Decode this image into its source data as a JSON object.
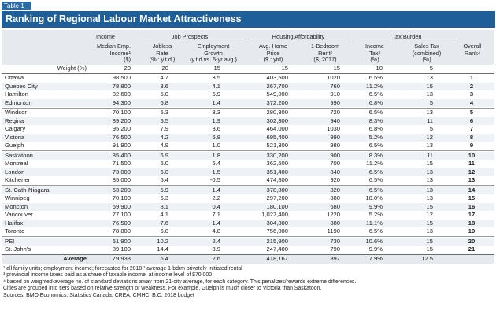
{
  "tag": "Table 1",
  "title": "Ranking of Regional Labour Market Attractiveness",
  "groups": {
    "income": "Income",
    "jobs": "Job Prospects",
    "housing": "Housing Affordability",
    "tax": "Tax Burden"
  },
  "headers": {
    "med_emp": [
      "Median Emp.",
      "Income¹",
      "($)"
    ],
    "jobless": [
      "Jobless",
      "Rate",
      "(% : y.t.d.)"
    ],
    "emp_growth": [
      "Employment",
      "Growth",
      "(y.t.d vs. 5-yr avg.)"
    ],
    "home_price": [
      "Avg. Home",
      "Price",
      "($ : ytd)"
    ],
    "rent": [
      "1-Bedroom",
      "Rent²",
      "($, 2017)"
    ],
    "income_tax": [
      "Income",
      "Tax³",
      "(%)"
    ],
    "sales_tax": [
      "Sales Tax",
      "(combined)",
      "(%)"
    ],
    "overall": [
      "Overall",
      "Rank⁴"
    ]
  },
  "weights": {
    "label": "Weight (%)",
    "values": [
      "20",
      "20",
      "15",
      "15",
      "15",
      "10",
      "5"
    ]
  },
  "rows": [
    {
      "city": "Ottawa",
      "med": "98,500",
      "jobless": "4.7",
      "growth": "3.5",
      "price": "403,500",
      "rent": "1020",
      "itax": "6.5%",
      "stax": "13",
      "rank": "1"
    },
    {
      "city": "Quebec City",
      "med": "78,800",
      "jobless": "3.6",
      "growth": "4.1",
      "price": "267,700",
      "rent": "760",
      "itax": "11.2%",
      "stax": "15",
      "rank": "2"
    },
    {
      "city": "Hamilton",
      "med": "82,600",
      "jobless": "5.0",
      "growth": "5.9",
      "price": "549,000",
      "rent": "910",
      "itax": "6.5%",
      "stax": "13",
      "rank": "3"
    },
    {
      "city": "Edmonton",
      "med": "94,300",
      "jobless": "6.8",
      "growth": "1.4",
      "price": "372,200",
      "rent": "990",
      "itax": "6.8%",
      "stax": "5",
      "rank": "4"
    },
    {
      "city": "Windsor",
      "med": "70,100",
      "jobless": "5.3",
      "growth": "3.3",
      "price": "280,300",
      "rent": "720",
      "itax": "6.5%",
      "stax": "13",
      "rank": "5"
    },
    {
      "city": "Regina",
      "med": "89,200",
      "jobless": "5.5",
      "growth": "1.9",
      "price": "302,300",
      "rent": "940",
      "itax": "8.3%",
      "stax": "11",
      "rank": "6"
    },
    {
      "city": "Calgary",
      "med": "95,200",
      "jobless": "7.9",
      "growth": "3.6",
      "price": "464,000",
      "rent": "1030",
      "itax": "6.8%",
      "stax": "5",
      "rank": "7"
    },
    {
      "city": "Victoria",
      "med": "76,500",
      "jobless": "4.2",
      "growth": "6.8",
      "price": "695,400",
      "rent": "990",
      "itax": "5.2%",
      "stax": "12",
      "rank": "8"
    },
    {
      "city": "Guelph",
      "med": "91,900",
      "jobless": "4.9",
      "growth": "1.0",
      "price": "521,300",
      "rent": "980",
      "itax": "6.5%",
      "stax": "13",
      "rank": "9"
    },
    {
      "city": "Saskatoon",
      "med": "85,400",
      "jobless": "6.9",
      "growth": "1.8",
      "price": "330,200",
      "rent": "900",
      "itax": "8.3%",
      "stax": "11",
      "rank": "10"
    },
    {
      "city": "Montreal",
      "med": "71,500",
      "jobless": "6.0",
      "growth": "5.4",
      "price": "362,600",
      "rent": "700",
      "itax": "11.2%",
      "stax": "15",
      "rank": "11"
    },
    {
      "city": "London",
      "med": "73,000",
      "jobless": "6.0",
      "growth": "1.5",
      "price": "351,400",
      "rent": "840",
      "itax": "6.5%",
      "stax": "13",
      "rank": "12"
    },
    {
      "city": "Kitchener",
      "med": "85,000",
      "jobless": "5.4",
      "growth": "-0.5",
      "price": "474,800",
      "rent": "920",
      "itax": "6.5%",
      "stax": "13",
      "rank": "13"
    },
    {
      "city": "St. Cath-Niagara",
      "med": "63,200",
      "jobless": "5.9",
      "growth": "1.4",
      "price": "378,800",
      "rent": "820",
      "itax": "6.5%",
      "stax": "13",
      "rank": "14"
    },
    {
      "city": "Winnipeg",
      "med": "70,100",
      "jobless": "6.3",
      "growth": "2.2",
      "price": "297,200",
      "rent": "880",
      "itax": "10.0%",
      "stax": "13",
      "rank": "15"
    },
    {
      "city": "Moncton",
      "med": "69,900",
      "jobless": "8.1",
      "growth": "0.4",
      "price": "180,100",
      "rent": "680",
      "itax": "9.9%",
      "stax": "15",
      "rank": "16"
    },
    {
      "city": "Vancouver",
      "med": "77,100",
      "jobless": "4.1",
      "growth": "7.1",
      "price": "1,027,400",
      "rent": "1220",
      "itax": "5.2%",
      "stax": "12",
      "rank": "17"
    },
    {
      "city": "Halifax",
      "med": "76,500",
      "jobless": "7.6",
      "growth": "1.4",
      "price": "304,800",
      "rent": "880",
      "itax": "11.1%",
      "stax": "15",
      "rank": "18"
    },
    {
      "city": "Toronto",
      "med": "78,800",
      "jobless": "6.0",
      "growth": "4.8",
      "price": "756,000",
      "rent": "1190",
      "itax": "6.5%",
      "stax": "13",
      "rank": "19"
    },
    {
      "city": "PEI",
      "med": "61,900",
      "jobless": "10.2",
      "growth": "2.4",
      "price": "215,900",
      "rent": "730",
      "itax": "10.6%",
      "stax": "15",
      "rank": "20"
    },
    {
      "city": "St. John's",
      "med": "89,100",
      "jobless": "14.4",
      "growth": "-3.9",
      "price": "247,400",
      "rent": "790",
      "itax": "9.9%",
      "stax": "15",
      "rank": "21"
    }
  ],
  "average": {
    "label": "Average",
    "med": "79,933",
    "jobless": "6.4",
    "growth": "2.6",
    "price": "418,167",
    "rent": "897",
    "itax": "7.9%",
    "stax": "12.5"
  },
  "footnotes": [
    "¹ all family units; employment income; forecasted for 2018   ² average 1-bdrm privately-initiated rental",
    "³ provincial income taxes paid as a share of taxable income, at income level of $70,000",
    "⁴ based on weighted-average no. of standard deviations away from 21-city average, for each category. This penalizes/rewards extreme differences.",
    "Cities are grouped into tiers based on relative strength or weakness. For example, Guelph is much closer to Victoria than Saskatoon.",
    "Sources: BMO Economics, Statistics Canada, CREA, CMHC, B.C. 2018 budget"
  ]
}
